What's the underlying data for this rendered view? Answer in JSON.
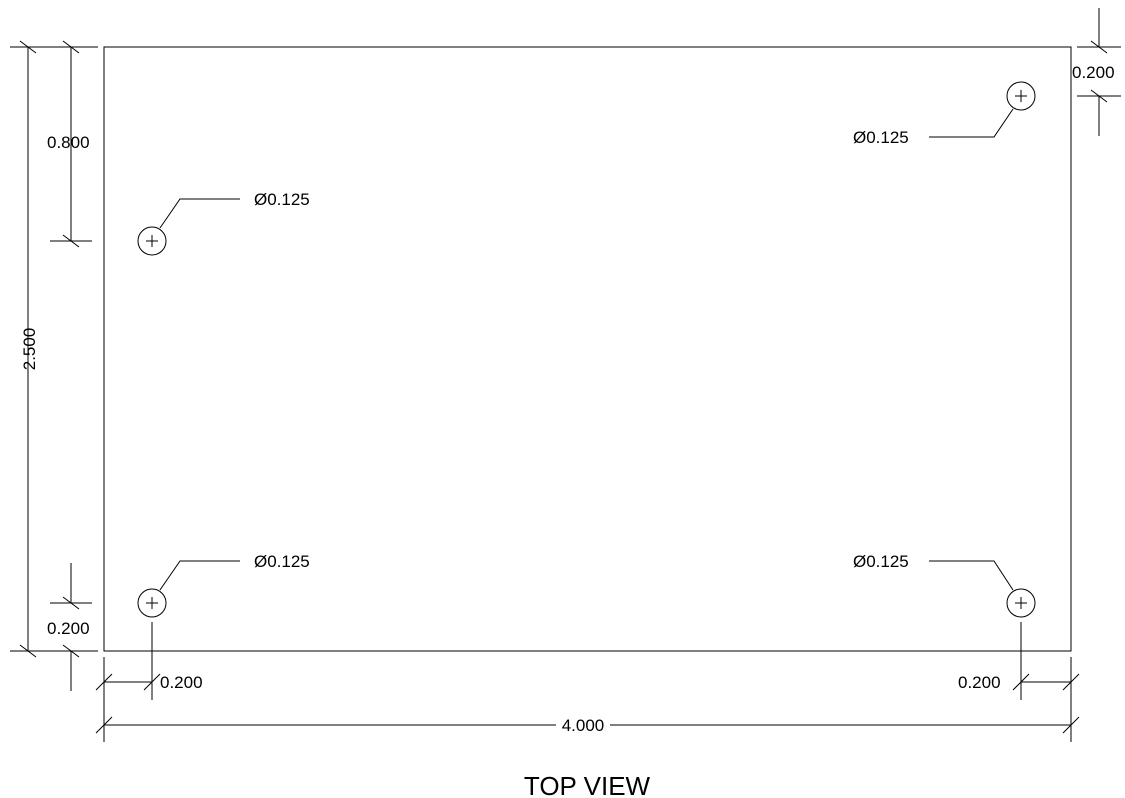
{
  "view_title": "TOP VIEW",
  "units_note": "",
  "colors": {
    "line": "#000000",
    "background": "#ffffff"
  },
  "dimensions": {
    "overall_height": "2.500",
    "hole_top_offset": "0.800",
    "hole_bottom_offset": "0.200",
    "hole_left_offset": "0.200",
    "hole_right_offset": "0.200",
    "top_right_offset": "0.200",
    "overall_width": "4.000"
  },
  "holes": [
    {
      "name": "hole-upper-left",
      "callout": "Ø0.125"
    },
    {
      "name": "hole-upper-right",
      "callout": "Ø0.125"
    },
    {
      "name": "hole-lower-left",
      "callout": "Ø0.125"
    },
    {
      "name": "hole-lower-right",
      "callout": "Ø0.125"
    }
  ]
}
